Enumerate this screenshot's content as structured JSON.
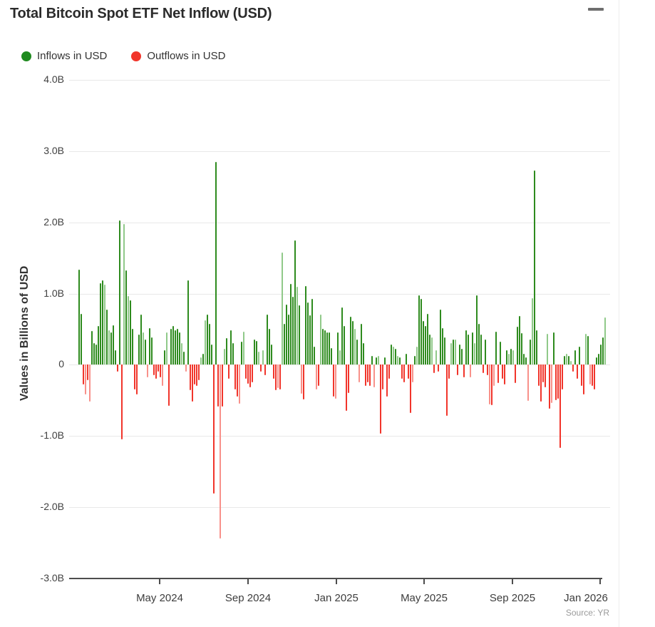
{
  "header": {
    "title": "Total Bitcoin Spot ETF Net Inflow (USD)",
    "menu_icon": "hamburger-icon"
  },
  "legend": [
    {
      "label": "Inflows in USD",
      "color": "#1f8a1f"
    },
    {
      "label": "Outflows in USD",
      "color": "#f1352b"
    }
  ],
  "footer": {
    "source": "Source: YR"
  },
  "chart_data": {
    "type": "bar",
    "title": "Total Bitcoin Spot ETF Net Inflow (USD)",
    "ylabel": "Values in Billions of USD",
    "unit": "billions of USD",
    "ylim": [
      -3.0,
      4.0
    ],
    "grid": true,
    "legend_position": "top-left",
    "y_ticks": [
      "4.0B",
      "3.0B",
      "2.0B",
      "1.0B",
      "0",
      "-1.0B",
      "-2.0B",
      "-3.0B"
    ],
    "y_tick_values": [
      4,
      3,
      2,
      1,
      0,
      -1,
      -2,
      -3
    ],
    "x_ticks": [
      "May 2024",
      "Sep 2024",
      "Jan 2025",
      "May 2025",
      "Sep 2025",
      "Jan 2026"
    ],
    "x_range": [
      "Jan 2024",
      "Jan 2026"
    ],
    "notable_points": {
      "max_inflow": 2.85,
      "second_max_inflow": 2.73,
      "max_outflow": -2.44,
      "second_max_outflow": -1.81
    },
    "series": [
      {
        "name": "Net flow",
        "positive_label": "Inflows in USD",
        "negative_label": "Outflows in USD",
        "values": [
          1.34,
          0.72,
          -0.28,
          -0.42,
          -0.22,
          -0.52,
          0.47,
          0.3,
          0.28,
          0.55,
          1.15,
          1.19,
          1.13,
          0.78,
          0.48,
          0.45,
          0.56,
          0.2,
          -0.1,
          2.03,
          -1.05,
          1.98,
          1.33,
          0.97,
          0.91,
          0.5,
          -0.35,
          -0.42,
          0.42,
          0.71,
          0.45,
          0.35,
          -0.18,
          0.52,
          0.38,
          -0.15,
          -0.2,
          -0.1,
          -0.18,
          -0.3,
          0.2,
          0.45,
          -0.58,
          0.51,
          0.55,
          0.48,
          0.5,
          0.45,
          0.3,
          0.18,
          -0.1,
          1.19,
          -0.36,
          -0.52,
          -0.28,
          -0.3,
          -0.22,
          0.1,
          0.15,
          0.63,
          0.71,
          0.58,
          0.28,
          -1.81,
          2.85,
          -0.59,
          -2.44,
          -0.59,
          0.22,
          0.37,
          -0.2,
          0.48,
          0.3,
          -0.35,
          -0.45,
          -0.55,
          0.32,
          0.46,
          -0.2,
          -0.27,
          -0.32,
          -0.25,
          0.35,
          0.33,
          0.18,
          -0.1,
          0.2,
          -0.15,
          0.71,
          0.51,
          0.28,
          -0.2,
          -0.36,
          -0.33,
          -0.35,
          1.58,
          0.58,
          0.85,
          0.71,
          1.14,
          0.96,
          1.75,
          1.1,
          0.84,
          -0.41,
          -0.49,
          1.11,
          0.88,
          0.7,
          0.93,
          0.25,
          -0.35,
          -0.3,
          0.71,
          0.5,
          0.48,
          0.45,
          0.45,
          0.23,
          -0.45,
          -0.48,
          0.45,
          0.2,
          0.81,
          0.55,
          -0.65,
          -0.4,
          0.68,
          0.62,
          0.5,
          0.35,
          -0.25,
          0.58,
          0.3,
          -0.3,
          -0.25,
          -0.3,
          0.12,
          -0.32,
          0.1,
          0.12,
          -0.97,
          -0.35,
          0.1,
          -0.45,
          -0.2,
          0.28,
          0.25,
          0.22,
          0.12,
          0.1,
          -0.2,
          -0.25,
          0.15,
          -0.2,
          -0.68,
          -0.25,
          0.12,
          0.25,
          0.98,
          0.93,
          0.62,
          0.55,
          0.72,
          0.42,
          0.38,
          -0.12,
          0.2,
          -0.1,
          0.78,
          0.52,
          0.38,
          -0.72,
          -0.2,
          0.3,
          0.35,
          0.35,
          -0.15,
          0.28,
          0.22,
          -0.18,
          0.48,
          0.42,
          -0.18,
          0.45,
          0.3,
          0.98,
          0.58,
          0.42,
          -0.12,
          0.35,
          -0.15,
          -0.56,
          -0.57,
          -0.3,
          0.46,
          -0.26,
          0.32,
          -0.2,
          -0.28,
          0.2,
          0.15,
          0.22,
          0.2,
          -0.26,
          0.54,
          0.69,
          0.44,
          0.15,
          0.1,
          -0.51,
          0.35,
          0.94,
          2.73,
          0.48,
          -0.3,
          -0.52,
          -0.25,
          -0.32,
          0.43,
          -0.62,
          -0.54,
          0.45,
          -0.5,
          -0.48,
          -1.17,
          -0.35,
          0.12,
          0.15,
          0.12,
          0.05,
          -0.1,
          0.2,
          -0.2,
          0.25,
          -0.3,
          -0.42,
          0.43,
          0.4,
          -0.28,
          -0.3,
          -0.35,
          0.1,
          0.15,
          0.28,
          0.38,
          0.67
        ]
      }
    ],
    "colors": {
      "inflow": "#2e8b1e",
      "inflow_light": "#90c989",
      "outflow": "#f1352b",
      "outflow_light": "#f8918a",
      "grid": "#e8e8e8",
      "axis": "#4d4d4d"
    }
  }
}
